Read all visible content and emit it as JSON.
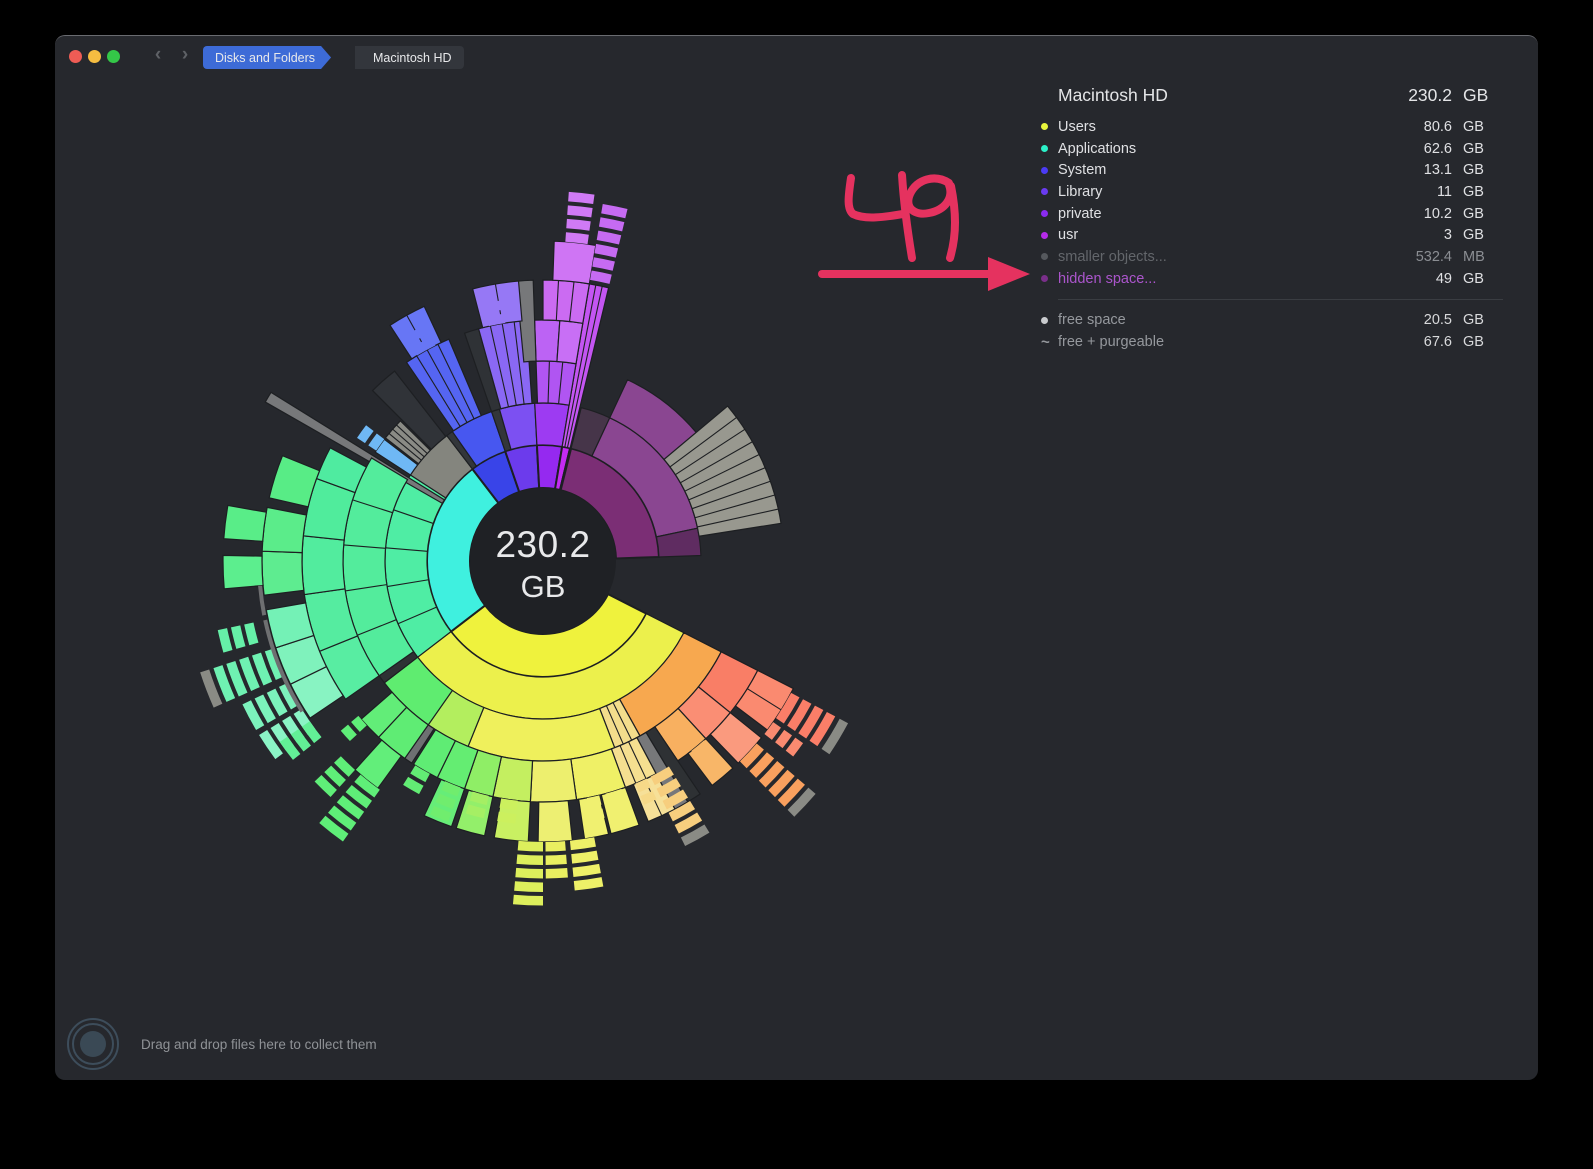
{
  "titlebar": {
    "back_glyph": "‹",
    "forward_glyph": "›",
    "breadcrumb": [
      {
        "label": "Disks and Folders"
      },
      {
        "label": "Macintosh HD"
      }
    ]
  },
  "legend": {
    "title": "Macintosh HD",
    "title_value": "230.2",
    "title_unit": "GB",
    "items": [
      {
        "label": "Users",
        "value": "80.6",
        "unit": "GB",
        "dot": "#e8f53c",
        "style": "normal"
      },
      {
        "label": "Applications",
        "value": "62.6",
        "unit": "GB",
        "dot": "#2bf0c8",
        "style": "normal"
      },
      {
        "label": "System",
        "value": "13.1",
        "unit": "GB",
        "dot": "#4b3bf5",
        "style": "normal"
      },
      {
        "label": "Library",
        "value": "11",
        "unit": "GB",
        "dot": "#6a3bf0",
        "style": "normal"
      },
      {
        "label": "private",
        "value": "10.2",
        "unit": "GB",
        "dot": "#8a2bf0",
        "style": "normal"
      },
      {
        "label": "usr",
        "value": "3",
        "unit": "GB",
        "dot": "#b52be8",
        "style": "normal"
      },
      {
        "label": "smaller objects...",
        "value": "532.4",
        "unit": "MB",
        "dot": "#55585d",
        "style": "muted"
      },
      {
        "label": "hidden space...",
        "value": "49",
        "unit": "GB",
        "dot": "#7a2f8a",
        "style": "accent"
      }
    ],
    "free_items": [
      {
        "label": "free space",
        "value": "20.5",
        "unit": "GB",
        "glyph": "dot",
        "dot": "#c9cbce"
      },
      {
        "label": "free + purgeable",
        "value": "67.6",
        "unit": "GB",
        "glyph": "~"
      }
    ]
  },
  "center_label": {
    "line1": "230.2",
    "line2": "GB"
  },
  "dropzone": {
    "text": "Drag and drop files here to collect them"
  },
  "annotation": {
    "text": "49",
    "color": "#e5325f",
    "points_to": "hidden space..."
  },
  "chart_data": {
    "type": "sunburst",
    "total_label": "230.2 GB",
    "center": [
      488,
      525
    ],
    "ring_radii": [
      73,
      116,
      158,
      200,
      241,
      281,
      320,
      356
    ],
    "angle_convention": "degrees clockwise from 12 o'clock",
    "sectors": [
      {
        "name": "Users",
        "size": "80.6 GB",
        "color": "#eff23d",
        "start_deg": 117,
        "end_deg": 232.5
      },
      {
        "name": "Applications",
        "size": "62.6 GB",
        "color": "#3ff0df",
        "start_deg": 232.5,
        "end_deg": 322.5
      },
      {
        "name": "System",
        "size": "13.1 GB",
        "color": "#3944e8",
        "start_deg": 322.5,
        "end_deg": 341
      },
      {
        "name": "Library",
        "size": "11 GB",
        "color": "#6c3bec",
        "start_deg": 341,
        "end_deg": 357
      },
      {
        "name": "private",
        "size": "10.2 GB",
        "color": "#9529f0",
        "start_deg": 357,
        "end_deg": 369.5
      },
      {
        "name": "usr",
        "size": "3 GB",
        "color": "#c32bf2",
        "start_deg": 369.5,
        "end_deg": 373.5
      },
      {
        "name": "smaller objects",
        "size": "532.4 MB",
        "color": "#4a4d52",
        "start_deg": 373.5,
        "end_deg": 374
      },
      {
        "name": "hidden space",
        "size": "49 GB",
        "color": "#7b2e75",
        "start_deg": 14,
        "end_deg": 88
      },
      {
        "name": "free space",
        "size": "20.5 GB",
        "color": "#26282d",
        "start_deg": 88,
        "end_deg": 117,
        "gap": true
      }
    ],
    "segments": [
      [
        2,
        117,
        232.5,
        "#ecf04c",
        1,
        0
      ],
      [
        2,
        232.5,
        303,
        "#4feda4",
        1,
        4
      ],
      [
        2,
        303,
        322.5,
        "#84857e",
        1,
        0
      ],
      [
        2,
        322.5,
        325,
        "#33363a",
        1,
        0
      ],
      [
        2,
        325,
        341,
        "#4757f0",
        1,
        0
      ],
      [
        2,
        341,
        344,
        "#33363a",
        1,
        0
      ],
      [
        2,
        344,
        357,
        "#7c50f2",
        1,
        0
      ],
      [
        2,
        357,
        369.5,
        "#9d3bf2",
        1,
        0
      ],
      [
        2,
        369.5,
        373.5,
        "#c455f2",
        4,
        2
      ],
      [
        2,
        14,
        25,
        "#463549",
        1,
        0
      ],
      [
        2,
        25,
        78,
        "#8a4691",
        1,
        0
      ],
      [
        2,
        78,
        88,
        "#5f2c61",
        1,
        0
      ],
      [
        2,
        299.8,
        301.8,
        "#77787a",
        5,
        0
      ],
      [
        3,
        117,
        151,
        "#f7a84f",
        1,
        0
      ],
      [
        3,
        151,
        159,
        "#f3dd8c",
        1,
        2
      ],
      [
        3,
        159,
        202,
        "#eff05c",
        1,
        0
      ],
      [
        3,
        202,
        215,
        "#b3ee5e",
        1,
        0
      ],
      [
        3,
        215,
        232.5,
        "#5fec70",
        1,
        0
      ],
      [
        3,
        232.5,
        235,
        "#2e3134",
        1,
        0
      ],
      [
        3,
        235,
        301,
        "#53ec9c",
        1,
        4
      ],
      [
        3,
        303,
        307.5,
        "#6fb8f5",
        1,
        0
      ],
      [
        3,
        308,
        314.5,
        "#8a8b85",
        1,
        3
      ],
      [
        3,
        315,
        322,
        "#303338",
        2,
        0
      ],
      [
        3,
        325.5,
        337,
        "#5565f2",
        2,
        3
      ],
      [
        3,
        341,
        344.5,
        "#2f3236",
        2,
        0
      ],
      [
        3,
        344.5,
        356,
        "#8a68f4",
        2,
        3
      ],
      [
        3,
        358,
        369.5,
        "#b055f2",
        1,
        2
      ],
      [
        3,
        25,
        50,
        "#8a4691",
        1,
        0
      ],
      [
        3,
        50,
        81,
        "#98988f",
        2,
        8
      ],
      [
        4,
        117,
        129,
        "#f97e66",
        1,
        0
      ],
      [
        4,
        129,
        137.5,
        "#fa8e74",
        1,
        0
      ],
      [
        4,
        137.5,
        146,
        "#f8b060",
        1,
        0
      ],
      [
        4,
        146,
        149,
        "#2e3134",
        2,
        0
      ],
      [
        4,
        149,
        152,
        "#77787a",
        2,
        0
      ],
      [
        4,
        152,
        160,
        "#f5df90",
        1,
        2
      ],
      [
        4,
        160,
        172,
        "#eff066",
        1,
        0
      ],
      [
        4,
        172,
        183,
        "#edef6e",
        1,
        0
      ],
      [
        4,
        183,
        192,
        "#c4ef60",
        1,
        0
      ],
      [
        4,
        192,
        199,
        "#8fee66",
        1,
        0
      ],
      [
        4,
        199,
        206,
        "#64ed72",
        1,
        0
      ],
      [
        4,
        206,
        212.5,
        "#5fec74",
        1,
        0
      ],
      [
        4,
        213,
        215,
        "#6e7072",
        1,
        0
      ],
      [
        4,
        215,
        223,
        "#5fec74",
        1,
        0
      ],
      [
        4,
        223,
        229,
        "#62ed78",
        1,
        0
      ],
      [
        4,
        235,
        248,
        "#58eda2",
        1,
        0
      ],
      [
        4,
        248,
        262,
        "#55eca0",
        1,
        0
      ],
      [
        4,
        262,
        276,
        "#52ec9e",
        1,
        0
      ],
      [
        4,
        276,
        290,
        "#50ec9c",
        1,
        0
      ],
      [
        4,
        290,
        298,
        "#4feba0",
        1,
        0
      ],
      [
        4,
        358,
        364,
        "#bc63f4",
        1,
        0
      ],
      [
        4,
        364,
        369.5,
        "#c86ff5",
        1,
        0
      ],
      [
        4,
        354.5,
        358,
        "#77787a",
        2,
        0
      ],
      [
        5,
        117,
        127,
        "#fa8a70",
        1,
        1
      ],
      [
        5,
        129,
        136,
        "#fa9a7e",
        1,
        0
      ],
      [
        5,
        137.5,
        143,
        "#f8b668",
        1,
        0
      ],
      [
        5,
        152,
        158,
        "#f6e098",
        1,
        1
      ],
      [
        5,
        160,
        166,
        "#f0f070",
        1,
        0
      ],
      [
        5,
        166.5,
        171.5,
        "#f0f070",
        1,
        0
      ],
      [
        5,
        174,
        181,
        "#edef72",
        1,
        0
      ],
      [
        5,
        183,
        190,
        "#c9f062",
        1,
        0
      ],
      [
        5,
        192,
        198,
        "#93ef6a",
        1,
        0
      ],
      [
        5,
        199,
        205,
        "#66ed78",
        1,
        0
      ],
      [
        5,
        216,
        222,
        "#62ee7a",
        1,
        0
      ],
      [
        5,
        236,
        244,
        "#88f3c2",
        1,
        0
      ],
      [
        5,
        244,
        252,
        "#7ff2bc",
        1,
        0
      ],
      [
        5,
        252,
        260,
        "#74f1b6",
        1,
        0
      ],
      [
        5,
        263,
        272,
        "#5eec90",
        1,
        0
      ],
      [
        5,
        272,
        281,
        "#5bec8a",
        1,
        0
      ],
      [
        5,
        283,
        292,
        "#58ec86",
        1,
        0
      ],
      [
        5,
        327,
        335,
        "#6776f5",
        1,
        1
      ],
      [
        5,
        345.5,
        355,
        "#9678f5",
        1,
        1
      ],
      [
        5,
        360,
        369.5,
        "#cb6bf2",
        1,
        2
      ],
      [
        6,
        265,
        271,
        "#5cee8e",
        1,
        0
      ],
      [
        6,
        274,
        280,
        "#59ed88",
        1,
        0
      ],
      [
        6,
        362,
        369.5,
        "#cf75f4",
        1,
        0
      ]
    ],
    "ticks": [
      [
        11.5,
        4,
        285,
        6,
        "#c66bf2"
      ],
      [
        366,
        4,
        320,
        4,
        "#d07af5"
      ],
      [
        349,
        4,
        241,
        2,
        "#9678f5"
      ],
      [
        331,
        5,
        241,
        2,
        "#6776f5"
      ],
      [
        305.5,
        4,
        200,
        2,
        "#6fb8f5"
      ],
      [
        121,
        6,
        281,
        4,
        "#fa7e68"
      ],
      [
        121,
        6,
        336,
        1,
        "#8a8b85"
      ],
      [
        126.5,
        3,
        281,
        3,
        "#fa8a70"
      ],
      [
        133,
        5,
        281,
        5,
        "#f9a05e"
      ],
      [
        133,
        5,
        349,
        1,
        "#8a8b85"
      ],
      [
        140,
        4,
        241,
        2,
        "#f8b668"
      ],
      [
        151,
        5,
        241,
        5,
        "#f7ce7e"
      ],
      [
        151,
        5,
        309,
        1,
        "#8a8b85"
      ],
      [
        156,
        3,
        241,
        2,
        "#f6d988"
      ],
      [
        163,
        4,
        241,
        3,
        "#f0f070"
      ],
      [
        168,
        3,
        241,
        2,
        "#f0f070"
      ],
      [
        172,
        5,
        281,
        4,
        "#eef068"
      ],
      [
        177.5,
        4,
        281,
        3,
        "#e9ef60"
      ],
      [
        182.5,
        5,
        281,
        5,
        "#ddef5c"
      ],
      [
        188,
        4,
        241,
        2,
        "#ccf05e"
      ],
      [
        195,
        4,
        241,
        2,
        "#a5ef64"
      ],
      [
        202,
        4,
        241,
        3,
        "#70ed6e"
      ],
      [
        210,
        4,
        241,
        2,
        "#62ed74"
      ],
      [
        218,
        5,
        281,
        5,
        "#5fee78"
      ],
      [
        224,
        4,
        281,
        3,
        "#5fee78"
      ],
      [
        228.5,
        3,
        241,
        2,
        "#5fee78"
      ],
      [
        236,
        5,
        283,
        4,
        "#8bf4c6"
      ],
      [
        242,
        5,
        283,
        4,
        "#7cf2bc"
      ],
      [
        249,
        6,
        283,
        5,
        "#6ff1b2"
      ],
      [
        249,
        6,
        351,
        1,
        "#8a8b85"
      ],
      [
        256,
        4,
        296,
        3,
        "#66f0a8"
      ],
      [
        233.5,
        4,
        283,
        3,
        "#62ef96"
      ]
    ],
    "thin_arcs": [
      [
        238,
        258,
        284,
        "#6e6f71"
      ],
      [
        259,
        265,
        284,
        "#6e6f71"
      ]
    ]
  }
}
